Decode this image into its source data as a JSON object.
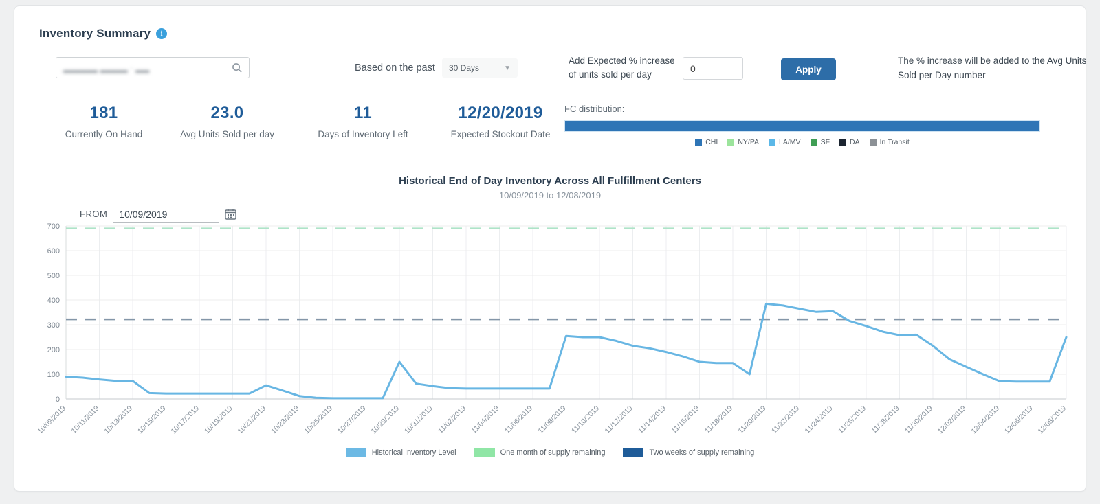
{
  "header": {
    "title": "Inventory Summary"
  },
  "controls": {
    "search": {
      "redacted_value": "▂▂▂▂▂ ▂▂▂▂ · ▂▂"
    },
    "period_label": "Based on the past",
    "period_value": "30 Days",
    "increase_label": "Add Expected % increase of units sold per day",
    "increase_value": "0",
    "apply_label": "Apply",
    "helper_text": "The % increase will be added to the Avg Units Sold per Day number"
  },
  "stats": [
    {
      "value": "181",
      "label": "Currently On Hand"
    },
    {
      "value": "23.0",
      "label": "Avg Units Sold per day"
    },
    {
      "value": "11",
      "label": "Days of Inventory Left"
    },
    {
      "value": "12/20/2019",
      "label": "Expected Stockout Date"
    }
  ],
  "fc_distribution": {
    "label": "FC distribution:",
    "segments": [
      {
        "name": "CHI",
        "pct": 100,
        "color": "#2e75b6"
      }
    ],
    "legend": [
      {
        "label": "CHI",
        "color": "#2e75b6"
      },
      {
        "label": "NY/PA",
        "color": "#9ce49c"
      },
      {
        "label": "LA/MV",
        "color": "#5bb8e8"
      },
      {
        "label": "SF",
        "color": "#3f9e54"
      },
      {
        "label": "DA",
        "color": "#1b2430"
      },
      {
        "label": "In Transit",
        "color": "#8c9196"
      }
    ]
  },
  "chart_header": {
    "title": "Historical End of Day Inventory Across All Fulfillment Centers",
    "subtitle": "10/09/2019 to 12/08/2019"
  },
  "from_control": {
    "label": "FROM",
    "value": "10/09/2019"
  },
  "chart_data": {
    "type": "line",
    "title": "Historical End of Day Inventory Across All Fulfillment Centers",
    "subtitle": "10/09/2019 to 12/08/2019",
    "xlabel": "",
    "ylabel": "",
    "ylim": [
      0,
      700
    ],
    "yticks": [
      0,
      100,
      200,
      300,
      400,
      500,
      600,
      700
    ],
    "grid": true,
    "legend_position": "bottom",
    "x_tick_every": 2,
    "x": [
      "10/09/2019",
      "10/10/2019",
      "10/11/2019",
      "10/12/2019",
      "10/13/2019",
      "10/14/2019",
      "10/15/2019",
      "10/16/2019",
      "10/17/2019",
      "10/18/2019",
      "10/19/2019",
      "10/20/2019",
      "10/21/2019",
      "10/22/2019",
      "10/23/2019",
      "10/24/2019",
      "10/25/2019",
      "10/26/2019",
      "10/27/2019",
      "10/28/2019",
      "10/29/2019",
      "10/30/2019",
      "10/31/2019",
      "11/01/2019",
      "11/02/2019",
      "11/03/2019",
      "11/04/2019",
      "11/05/2019",
      "11/06/2019",
      "11/07/2019",
      "11/08/2019",
      "11/09/2019",
      "11/10/2019",
      "11/11/2019",
      "11/12/2019",
      "11/13/2019",
      "11/14/2019",
      "11/15/2019",
      "11/16/2019",
      "11/17/2019",
      "11/18/2019",
      "11/19/2019",
      "11/20/2019",
      "11/21/2019",
      "11/22/2019",
      "11/23/2019",
      "11/24/2019",
      "11/25/2019",
      "11/26/2019",
      "11/27/2019",
      "11/28/2019",
      "11/29/2019",
      "11/30/2019",
      "12/01/2019",
      "12/02/2019",
      "12/03/2019",
      "12/04/2019",
      "12/05/2019",
      "12/06/2019",
      "12/07/2019",
      "12/08/2019"
    ],
    "series": [
      {
        "name": "Historical Inventory Level",
        "color": "#68b6e3",
        "values": [
          90,
          86,
          79,
          73,
          73,
          24,
          22,
          22,
          22,
          22,
          22,
          22,
          55,
          34,
          12,
          5,
          3,
          3,
          3,
          3,
          150,
          62,
          52,
          44,
          42,
          42,
          42,
          42,
          42,
          42,
          255,
          250,
          250,
          235,
          215,
          205,
          190,
          172,
          150,
          145,
          145,
          100,
          385,
          378,
          365,
          352,
          355,
          315,
          295,
          272,
          258,
          260,
          215,
          160,
          130,
          100,
          72,
          70,
          70,
          70,
          250
        ]
      }
    ],
    "reference_lines": [
      {
        "name": "One month of supply remaining",
        "value": 690,
        "color": "#aee3c8",
        "style": "dashed"
      },
      {
        "name": "Two weeks of supply remaining",
        "value": 322,
        "color": "#8496a8",
        "style": "dashed"
      }
    ]
  },
  "chart_legend": [
    {
      "label": "Historical Inventory Level",
      "color": "#6cb9e4"
    },
    {
      "label": "One month of supply remaining",
      "color": "#90e6a6"
    },
    {
      "label": "Two weeks of supply remaining",
      "color": "#1f5c99"
    }
  ]
}
